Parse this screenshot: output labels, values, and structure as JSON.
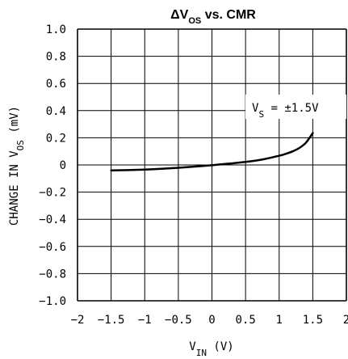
{
  "chart_data": {
    "type": "line",
    "title": {
      "base": "ΔV",
      "sub": "OS",
      "rest": " vs. CMR"
    },
    "xlabel": {
      "base": "V",
      "sub": "IN",
      "rest": "  (V)"
    },
    "ylabel": {
      "base": "CHANGE IN V",
      "sub": "OS",
      "rest": "  (mV)"
    },
    "xlim": [
      -2,
      2
    ],
    "ylim": [
      -1.0,
      1.0
    ],
    "xticks": [
      -2,
      -1.5,
      -1,
      -0.5,
      0,
      0.5,
      1,
      1.5,
      2
    ],
    "xtick_labels": [
      "−2",
      "−1.5",
      "−1",
      "−0.5",
      "0",
      "0.5",
      "1",
      "1.5",
      "2"
    ],
    "yticks": [
      1.0,
      0.8,
      0.6,
      0.4,
      0.2,
      0,
      -0.2,
      -0.4,
      -0.6,
      -0.8,
      -1.0
    ],
    "ytick_labels": [
      "1.0",
      "0.8",
      "0.6",
      "0.4",
      "0.2",
      "0",
      "−0.2",
      "−0.4",
      "−0.6",
      "−0.8",
      "−1.0"
    ],
    "grid": true,
    "annotation": {
      "base": "V",
      "sub": "S",
      "rest": " = ±1.5V"
    },
    "series": [
      {
        "x": [
          -1.5,
          -1.25,
          -1.0,
          -0.75,
          -0.5,
          -0.25,
          0,
          0.25,
          0.5,
          0.75,
          1.0,
          1.1,
          1.2,
          1.3,
          1.4,
          1.5
        ],
        "y": [
          -0.04,
          -0.038,
          -0.034,
          -0.028,
          -0.021,
          -0.012,
          -0.002,
          0.01,
          0.022,
          0.04,
          0.068,
          0.082,
          0.1,
          0.125,
          0.165,
          0.235
        ]
      }
    ]
  }
}
